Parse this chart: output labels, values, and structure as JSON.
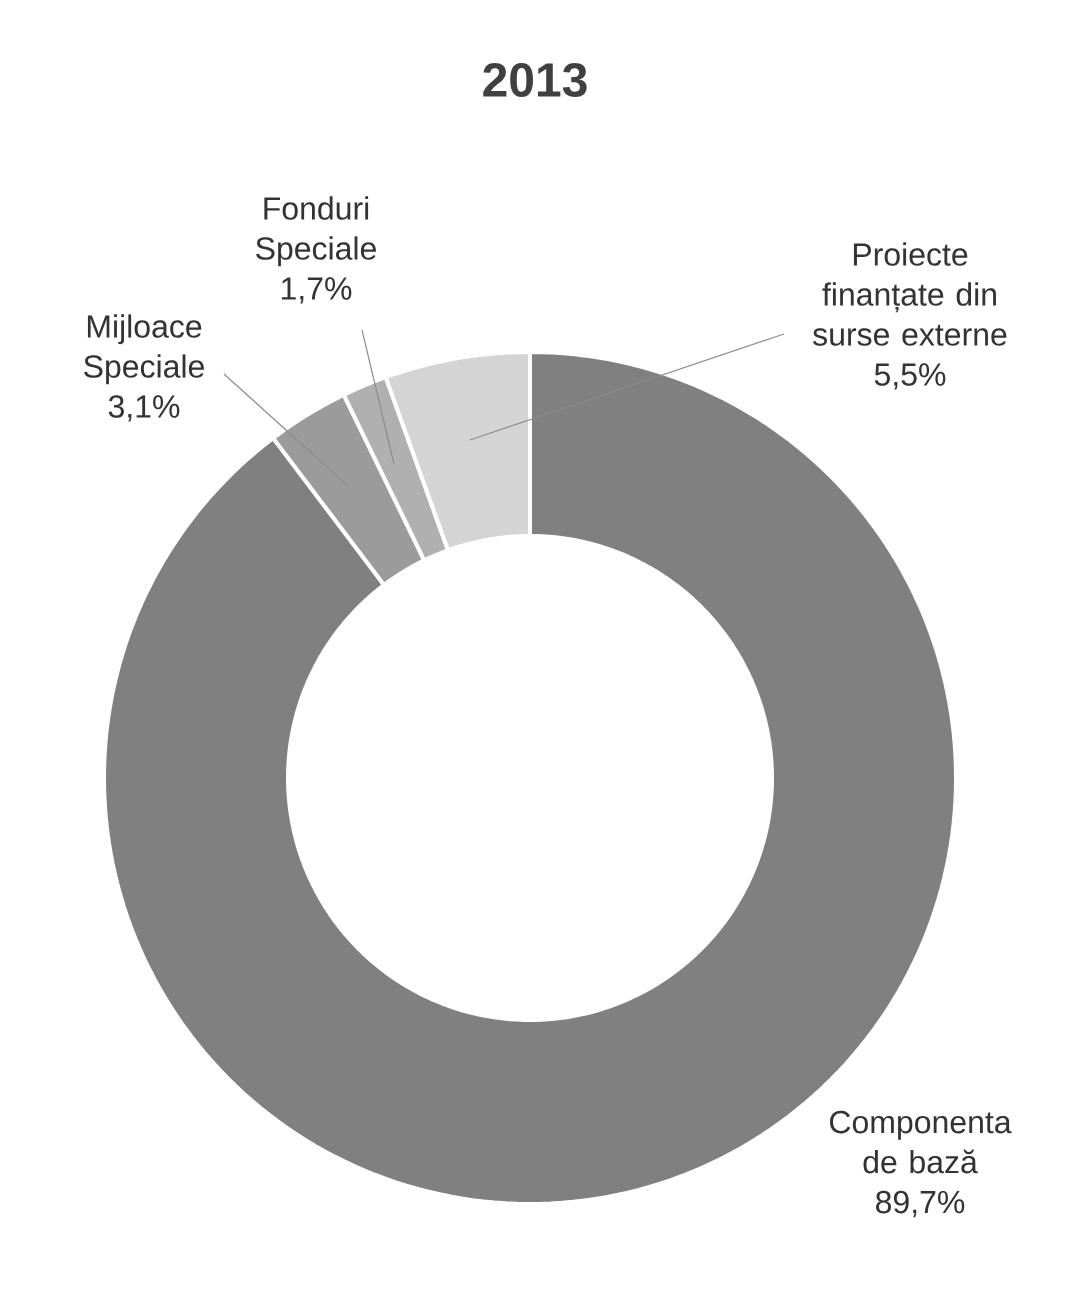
{
  "chart_data": {
    "type": "donut",
    "title": "2013",
    "categories": [
      "Componenta de bază",
      "Mijloace Speciale",
      "Fonduri Speciale",
      "Proiecte finanțate din surse externe"
    ],
    "values": [
      89.7,
      3.1,
      1.7,
      5.5
    ],
    "colors": [
      "#808080",
      "#9b9b9b",
      "#b0b0b0",
      "#d4d4d4"
    ],
    "value_labels": [
      "89,7%",
      "3,1%",
      "1,7%",
      "5,5%"
    ],
    "legend": false
  }
}
